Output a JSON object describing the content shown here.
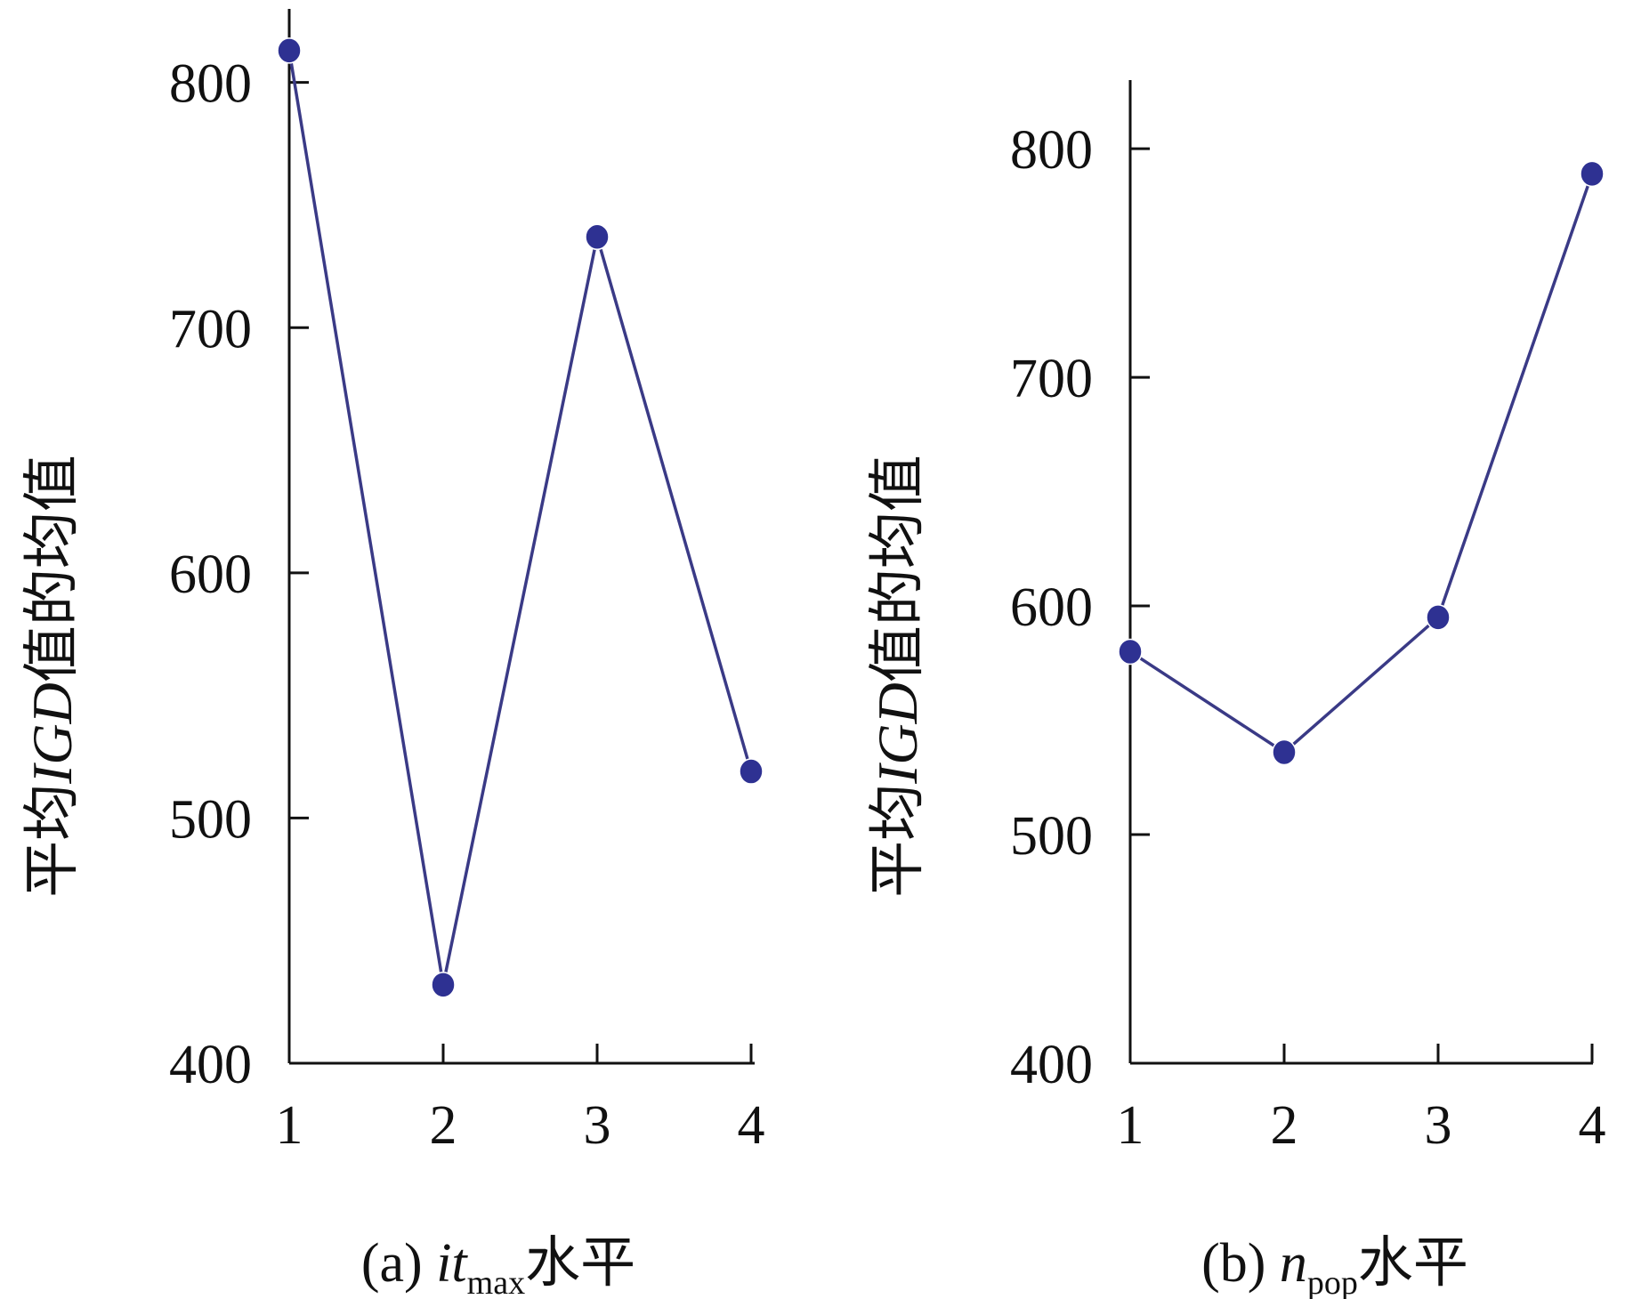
{
  "chart_data": [
    {
      "type": "line",
      "panel": "a",
      "caption_prefix": "(a) ",
      "caption_var": "it",
      "caption_sub": "max",
      "caption_suffix": "水平",
      "ylabel_prefix": "平均",
      "ylabel_var": "IGD",
      "ylabel_suffix": "值的均值",
      "x": [
        1,
        2,
        3,
        4
      ],
      "x_ticks": [
        "1",
        "2",
        "3",
        "4"
      ],
      "y_ticks": [
        "400",
        "500",
        "600",
        "700",
        "800"
      ],
      "ylim": [
        400,
        830
      ],
      "values": [
        813,
        432,
        737,
        519
      ],
      "line_color": "#3a3a86",
      "point_color": "#2e3192"
    },
    {
      "type": "line",
      "panel": "b",
      "caption_prefix": "(b) ",
      "caption_var": "n",
      "caption_sub": "pop",
      "caption_suffix": "水平",
      "ylabel_prefix": "平均",
      "ylabel_var": "IGD",
      "ylabel_suffix": "值的均值",
      "x": [
        1,
        2,
        3,
        4
      ],
      "x_ticks": [
        "1",
        "2",
        "3",
        "4"
      ],
      "y_ticks": [
        "400",
        "500",
        "600",
        "700",
        "800"
      ],
      "ylim": [
        400,
        830
      ],
      "values": [
        580,
        536,
        595,
        789
      ],
      "line_color": "#3a3a86",
      "point_color": "#2e3192"
    }
  ]
}
